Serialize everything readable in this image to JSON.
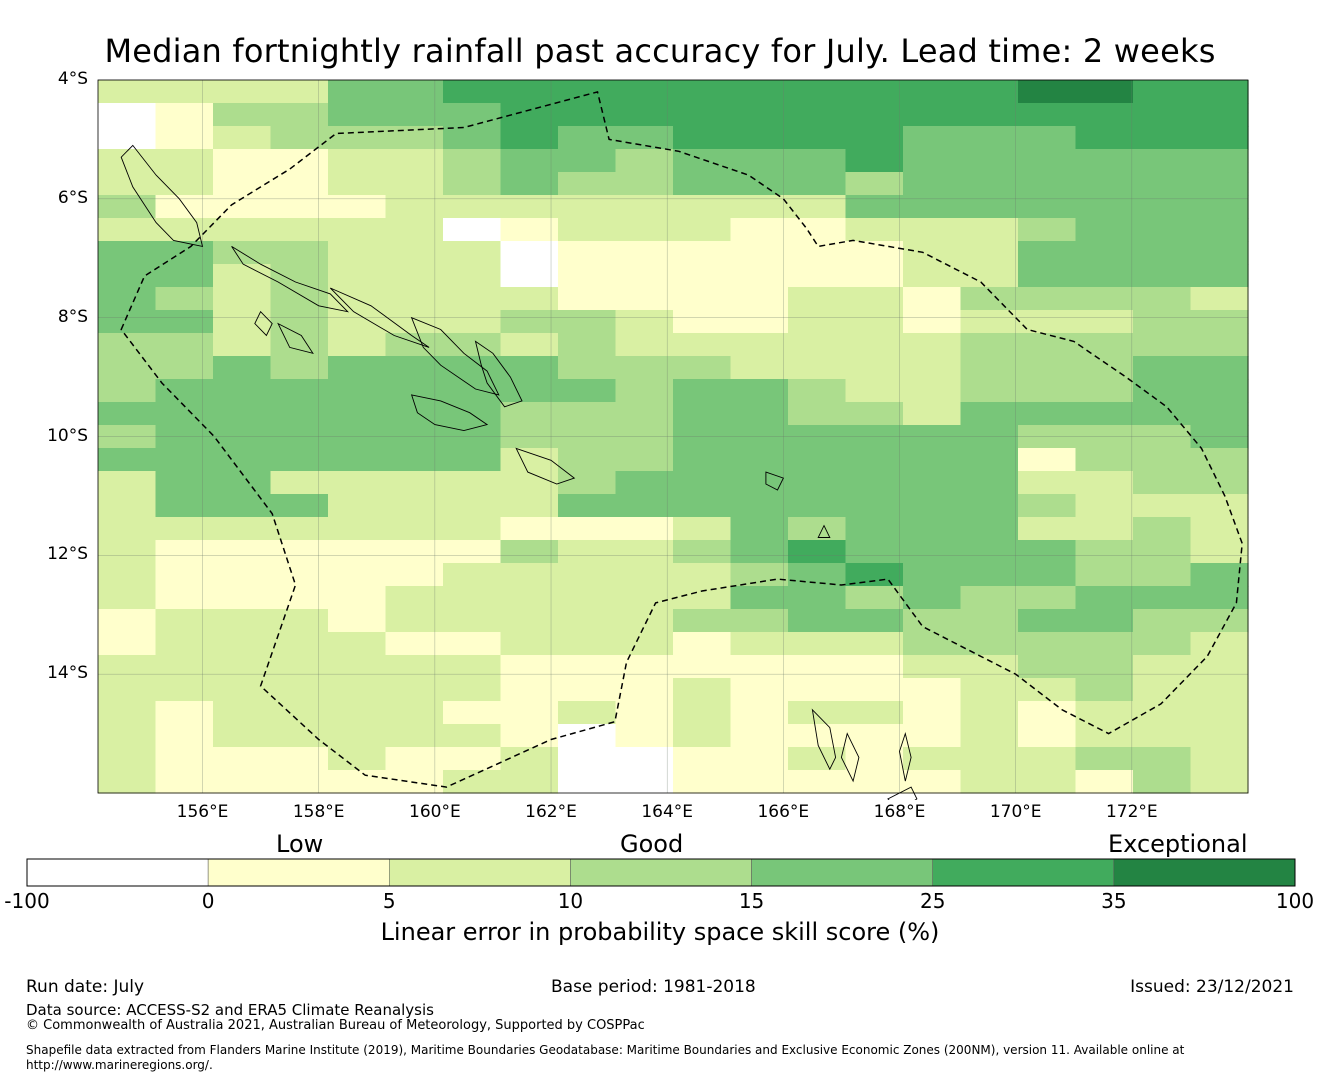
{
  "title": "Median fortnightly rainfall past accuracy for July. Lead time: 2 weeks",
  "map": {
    "lon_range": [
      154.2,
      174.0
    ],
    "lat_range": [
      -16.0,
      -4.0
    ],
    "lat_ticks": [
      {
        "value": -4,
        "label": "4°S"
      },
      {
        "value": -6,
        "label": "6°S"
      },
      {
        "value": -8,
        "label": "8°S"
      },
      {
        "value": -10,
        "label": "10°S"
      },
      {
        "value": -12,
        "label": "12°S"
      },
      {
        "value": -14,
        "label": "14°S"
      }
    ],
    "lon_ticks": [
      {
        "value": 156,
        "label": "156°E"
      },
      {
        "value": 158,
        "label": "158°E"
      },
      {
        "value": 160,
        "label": "160°E"
      },
      {
        "value": 162,
        "label": "162°E"
      },
      {
        "value": 164,
        "label": "164°E"
      },
      {
        "value": 166,
        "label": "166°E"
      },
      {
        "value": 168,
        "label": "168°E"
      },
      {
        "value": 170,
        "label": "170°E"
      },
      {
        "value": 172,
        "label": "172°E"
      }
    ],
    "grid_lines": true,
    "grid_legend": "0 = below 0%, 1 = 0-5%, 2 = 5-10%, 3 = 10-15%, 4 = 15-25%, 5 = 25-35%, 6 = 35-100%",
    "grid": [
      "22224455555555556655",
      "01334445555555555555",
      "01233345445555444555",
      "22112234434445444444",
      "22112234334443444444",
      "31111222222224444444",
      "22222201222112223444",
      "44332220111111224444",
      "44232220111111224444",
      "43232222111122133332",
      "44232223321122122233",
      "33232332322222233333",
      "33434444333222233344",
      "34444444434432233344",
      "44444443334433244444",
      "34444443334444443334",
      "44444442334444441333",
      "24422222344444442233",
      "24442222444444443222",
      "22222221112434442232",
      "21111113223454444332",
      "21111122222345444334",
      "21111222222443433444",
      "12221222223344334433",
      "12222112221222333332",
      "22222221111111223322",
      "22222221112111122322",
      "21222211212122121222",
      "21222221012111121222",
      "21112112001121222332",
      "21111122001111122132"
    ],
    "eez_boundary": [
      [
        154.6,
        -8.2
      ],
      [
        155.0,
        -7.3
      ],
      [
        155.8,
        -6.8
      ],
      [
        156.5,
        -6.1
      ],
      [
        157.5,
        -5.5
      ],
      [
        158.3,
        -4.9
      ],
      [
        160.5,
        -4.8
      ],
      [
        162.8,
        -4.2
      ],
      [
        163.0,
        -5.0
      ],
      [
        164.2,
        -5.2
      ],
      [
        165.4,
        -5.6
      ],
      [
        166.0,
        -6.0
      ],
      [
        166.4,
        -6.5
      ],
      [
        166.6,
        -6.8
      ],
      [
        167.2,
        -6.7
      ],
      [
        168.4,
        -6.9
      ],
      [
        169.4,
        -7.4
      ],
      [
        170.2,
        -8.2
      ],
      [
        171.0,
        -8.4
      ],
      [
        171.9,
        -9.0
      ],
      [
        172.6,
        -9.5
      ],
      [
        173.2,
        -10.2
      ],
      [
        173.6,
        -11.0
      ],
      [
        173.9,
        -11.8
      ],
      [
        173.8,
        -12.8
      ],
      [
        173.3,
        -13.7
      ],
      [
        172.5,
        -14.5
      ],
      [
        171.6,
        -15.0
      ],
      [
        170.8,
        -14.6
      ],
      [
        170.0,
        -14.0
      ],
      [
        169.2,
        -13.6
      ],
      [
        168.4,
        -13.2
      ],
      [
        167.8,
        -12.4
      ],
      [
        167.0,
        -12.5
      ],
      [
        165.9,
        -12.4
      ],
      [
        164.6,
        -12.6
      ],
      [
        163.8,
        -12.8
      ],
      [
        163.3,
        -13.8
      ],
      [
        163.1,
        -14.8
      ],
      [
        162.0,
        -15.1
      ],
      [
        160.2,
        -15.9
      ],
      [
        158.8,
        -15.7
      ],
      [
        158.0,
        -15.1
      ],
      [
        157.0,
        -14.2
      ],
      [
        157.6,
        -12.5
      ],
      [
        157.2,
        -11.3
      ],
      [
        156.2,
        -10.0
      ],
      [
        155.3,
        -9.1
      ]
    ],
    "islands": [
      [
        [
          155.5,
          -6.7
        ],
        [
          155.2,
          -6.4
        ],
        [
          154.8,
          -5.8
        ],
        [
          154.6,
          -5.3
        ],
        [
          154.8,
          -5.1
        ],
        [
          155.2,
          -5.6
        ],
        [
          155.6,
          -6.0
        ],
        [
          155.9,
          -6.4
        ],
        [
          156.0,
          -6.8
        ]
      ],
      [
        [
          156.5,
          -6.8
        ],
        [
          157.0,
          -7.1
        ],
        [
          157.6,
          -7.4
        ],
        [
          158.2,
          -7.6
        ],
        [
          158.5,
          -7.9
        ],
        [
          158.0,
          -7.8
        ],
        [
          157.3,
          -7.4
        ],
        [
          156.7,
          -7.1
        ]
      ],
      [
        [
          158.2,
          -7.5
        ],
        [
          158.9,
          -7.8
        ],
        [
          159.6,
          -8.3
        ],
        [
          159.9,
          -8.5
        ],
        [
          159.3,
          -8.3
        ],
        [
          158.6,
          -7.9
        ]
      ],
      [
        [
          159.6,
          -8.0
        ],
        [
          160.1,
          -8.2
        ],
        [
          160.5,
          -8.6
        ],
        [
          160.9,
          -8.9
        ],
        [
          161.1,
          -9.3
        ],
        [
          160.7,
          -9.2
        ],
        [
          160.1,
          -8.8
        ],
        [
          159.8,
          -8.5
        ]
      ],
      [
        [
          159.6,
          -9.3
        ],
        [
          160.1,
          -9.4
        ],
        [
          160.6,
          -9.6
        ],
        [
          160.9,
          -9.8
        ],
        [
          160.5,
          -9.9
        ],
        [
          160.0,
          -9.8
        ],
        [
          159.7,
          -9.6
        ]
      ],
      [
        [
          160.7,
          -8.4
        ],
        [
          161.0,
          -8.6
        ],
        [
          161.3,
          -9.0
        ],
        [
          161.5,
          -9.4
        ],
        [
          161.2,
          -9.5
        ],
        [
          160.9,
          -9.1
        ],
        [
          160.8,
          -8.8
        ]
      ],
      [
        [
          161.4,
          -10.2
        ],
        [
          162.0,
          -10.4
        ],
        [
          162.4,
          -10.7
        ],
        [
          162.1,
          -10.8
        ],
        [
          161.6,
          -10.6
        ]
      ],
      [
        [
          157.3,
          -8.1
        ],
        [
          157.7,
          -8.3
        ],
        [
          157.9,
          -8.6
        ],
        [
          157.5,
          -8.5
        ]
      ],
      [
        [
          157.0,
          -7.9
        ],
        [
          157.2,
          -8.1
        ],
        [
          157.1,
          -8.3
        ],
        [
          156.9,
          -8.1
        ]
      ],
      [
        [
          166.5,
          -14.6
        ],
        [
          166.8,
          -14.9
        ],
        [
          166.9,
          -15.4
        ],
        [
          166.8,
          -15.6
        ],
        [
          166.6,
          -15.2
        ]
      ],
      [
        [
          167.1,
          -15.0
        ],
        [
          167.3,
          -15.4
        ],
        [
          167.2,
          -15.8
        ],
        [
          167.0,
          -15.4
        ]
      ],
      [
        [
          167.8,
          -16.1
        ],
        [
          168.2,
          -15.9
        ],
        [
          168.3,
          -16.1
        ],
        [
          168.0,
          -16.3
        ]
      ],
      [
        [
          168.1,
          -15.0
        ],
        [
          168.2,
          -15.4
        ],
        [
          168.1,
          -15.8
        ],
        [
          168.0,
          -15.3
        ]
      ],
      [
        [
          165.7,
          -10.6
        ],
        [
          166.0,
          -10.7
        ],
        [
          165.9,
          -10.9
        ],
        [
          165.7,
          -10.8
        ]
      ],
      [
        [
          166.7,
          -11.5
        ],
        [
          166.8,
          -11.7
        ],
        [
          166.6,
          -11.7
        ]
      ]
    ]
  },
  "legend": {
    "category_labels": [
      "Low",
      "Good",
      "Exceptional"
    ],
    "bins": [
      {
        "color": "#ffffff"
      },
      {
        "color": "#ffffcc"
      },
      {
        "color": "#d9f0a3"
      },
      {
        "color": "#addd8e"
      },
      {
        "color": "#78c679"
      },
      {
        "color": "#41ab5d"
      },
      {
        "color": "#238443"
      }
    ],
    "tick_labels": [
      "-100",
      "0",
      "5",
      "10",
      "15",
      "25",
      "35",
      "100"
    ],
    "title": "Linear error in probability space skill score (%)"
  },
  "footer": {
    "run_date": "Run date: July",
    "base_period": "Base period: 1981-2018",
    "issued": "Issued: 23/12/2021",
    "data_source": "Data source: ACCESS-S2 and ERA5 Climate Reanalysis",
    "copyright": "© Commonwealth of Australia 2021, Australian Bureau of Meteorology, Supported by COSPPac",
    "shapefile": "Shapefile data extracted from Flanders Marine Institute (2019), Maritime Boundaries Geodatabase: Maritime Boundaries and Exclusive Economic Zones (200NM), version 11. Available online at http://www.marineregions.org/."
  }
}
